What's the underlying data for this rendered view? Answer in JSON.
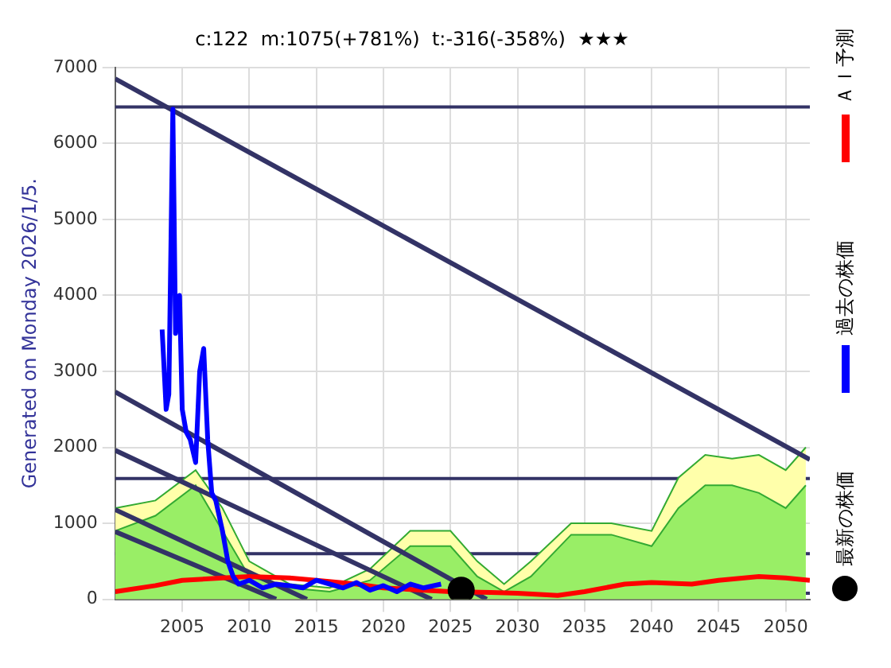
{
  "chart_data": {
    "type": "line",
    "title": "c:122  m:1075(+781%)  t:-316(-358%)  ★★★",
    "ylabel": "Generated on Monday 2026/1/5.",
    "xlim": [
      2000,
      2051.8
    ],
    "ylim": [
      0,
      7000
    ],
    "xticks": [
      2005,
      2010,
      2015,
      2020,
      2025,
      2030,
      2035,
      2040,
      2045,
      2050
    ],
    "yticks": [
      0,
      1000,
      2000,
      3000,
      4000,
      5000,
      6000,
      7000
    ],
    "grid": true,
    "legend": "right",
    "ref_lines": [
      {
        "axis": "y",
        "value": 6480,
        "color": "#333366"
      },
      {
        "axis": "y",
        "value": 1590,
        "color": "#333366"
      },
      {
        "axis": "y",
        "value": 600,
        "color": "#333366"
      },
      {
        "axis": "y",
        "value": 80,
        "color": "#333366"
      }
    ],
    "series": [
      {
        "type": "area",
        "color": "#ffffaa",
        "x": [
          2000,
          2003,
          2006,
          2008,
          2010,
          2013,
          2016,
          2019,
          2022,
          2025,
          2027,
          2029,
          2031,
          2034,
          2037,
          2040,
          2042,
          2044,
          2046,
          2048,
          2050,
          2051.5
        ],
        "values": [
          1200,
          1300,
          1700,
          1200,
          500,
          200,
          150,
          400,
          900,
          900,
          500,
          200,
          500,
          1000,
          1000,
          900,
          1600,
          1900,
          1850,
          1900,
          1700,
          2000
        ]
      },
      {
        "type": "area",
        "color": "#99ee66",
        "x": [
          2000,
          2003,
          2006,
          2008,
          2010,
          2013,
          2016,
          2019,
          2022,
          2025,
          2027,
          2029,
          2031,
          2034,
          2037,
          2040,
          2042,
          2044,
          2046,
          2048,
          2050,
          2051.5
        ],
        "values": [
          900,
          1100,
          1500,
          900,
          300,
          150,
          100,
          250,
          700,
          700,
          300,
          100,
          300,
          850,
          850,
          700,
          1200,
          1500,
          1500,
          1400,
          1200,
          1500
        ]
      },
      {
        "color": "#333366",
        "x": [
          2000,
          2051.8
        ],
        "values": [
          6850,
          1840
        ]
      },
      {
        "color": "#333366",
        "x": [
          2000,
          2027.7
        ],
        "values": [
          2730,
          0
        ]
      },
      {
        "color": "#333366",
        "x": [
          2000,
          2023.6
        ],
        "values": [
          1960,
          0
        ]
      },
      {
        "color": "#333366",
        "x": [
          2000,
          2014.3
        ],
        "values": [
          1180,
          0
        ]
      },
      {
        "color": "#333366",
        "x": [
          2000,
          2012
        ],
        "values": [
          890,
          0
        ]
      },
      {
        "name": "ＡＩ予測",
        "color": "#ff0000",
        "x": [
          2000,
          2003,
          2005,
          2008,
          2010,
          2013,
          2015,
          2018,
          2020,
          2023,
          2025,
          2028,
          2030,
          2033,
          2035,
          2038,
          2040,
          2043,
          2045,
          2048,
          2050,
          2051.8
        ],
        "values": [
          100,
          180,
          250,
          280,
          300,
          280,
          250,
          200,
          150,
          120,
          100,
          90,
          80,
          50,
          100,
          200,
          220,
          200,
          250,
          300,
          280,
          250
        ]
      },
      {
        "name": "過去の株価",
        "color": "#0000ff",
        "x": [
          2003.5,
          2003.8,
          2004.0,
          2004.3,
          2004.5,
          2004.8,
          2005.0,
          2005.3,
          2005.6,
          2006.0,
          2006.3,
          2006.6,
          2006.9,
          2007.2,
          2007.5,
          2008.0,
          2008.4,
          2008.8,
          2009.2,
          2010,
          2011,
          2012,
          2013,
          2014,
          2015,
          2016,
          2017,
          2018,
          2019,
          2020,
          2021,
          2022,
          2023,
          2024.3
        ],
        "values": [
          3550,
          2500,
          2700,
          6450,
          3500,
          4000,
          2500,
          2200,
          2100,
          1800,
          3000,
          3300,
          2100,
          1400,
          1300,
          900,
          500,
          300,
          200,
          250,
          150,
          200,
          180,
          150,
          250,
          200,
          150,
          220,
          120,
          180,
          100,
          200,
          150,
          200
        ]
      },
      {
        "type": "scatter",
        "name": "最新の株価",
        "color": "#000000",
        "marker": "circle",
        "x": [
          2025.8
        ],
        "values": [
          120
        ]
      }
    ]
  }
}
